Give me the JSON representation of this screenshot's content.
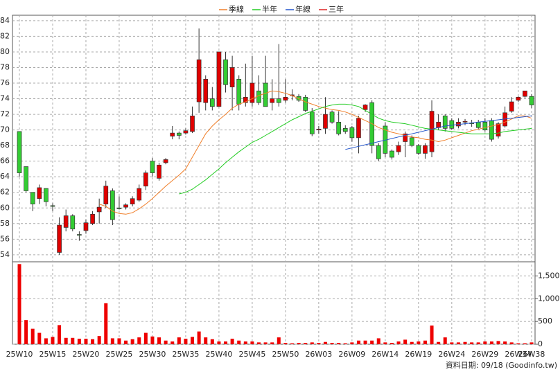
{
  "chart_data": {
    "type": "candlestick",
    "categories": [
      "25W10",
      null,
      null,
      null,
      null,
      "25W15",
      null,
      null,
      null,
      null,
      "25W20",
      null,
      null,
      null,
      null,
      "25W25",
      null,
      null,
      null,
      null,
      "25W30",
      null,
      null,
      null,
      null,
      "25W35",
      null,
      null,
      null,
      null,
      "25W40",
      null,
      null,
      null,
      null,
      "25W45",
      null,
      null,
      null,
      null,
      "25W50",
      null,
      null,
      null,
      null,
      "26W03",
      null,
      null,
      null,
      null,
      "26W09",
      null,
      null,
      null,
      null,
      "26W14",
      null,
      null,
      null,
      null,
      "26W19",
      null,
      null,
      null,
      null,
      "26W24",
      null,
      null,
      null,
      null,
      "26W29",
      null,
      null,
      null,
      null,
      "26W34",
      null,
      "26W38"
    ],
    "open": [
      69.8,
      65.3,
      62,
      61.2,
      62.5,
      60.3,
      54.3,
      57.5,
      59,
      56.6,
      57.1,
      58,
      59.5,
      60.5,
      62.2,
      60,
      60.1,
      60.5,
      61,
      62.8,
      66,
      63.8,
      65.8,
      69.2,
      69.6,
      69.6,
      69.8,
      73.6,
      73.5,
      74,
      73,
      79,
      75.5,
      76.5,
      73.5,
      73.5,
      75,
      76,
      73.5,
      74,
      73.8,
      74.4,
      74.3,
      74.2,
      72.3,
      70,
      70.2,
      72.3,
      71,
      70.2,
      70.3,
      69,
      72.6,
      73.5,
      68,
      70.5,
      67.3,
      67.2,
      68.5,
      69,
      68,
      67,
      67.2,
      70.3,
      71.8,
      71.2,
      70.5,
      71,
      70.9,
      71,
      71,
      71.2,
      69.2,
      70.5,
      72.4,
      73.8,
      74.3,
      74.3
    ],
    "high": [
      69.8,
      65.3,
      62,
      63,
      62.5,
      60.6,
      58.8,
      59.8,
      59.2,
      57,
      58.5,
      59.6,
      61.2,
      63.5,
      62.5,
      61.5,
      60.6,
      61.5,
      63,
      64.8,
      66.4,
      65.8,
      66.4,
      70.5,
      69.8,
      70.2,
      73,
      83,
      77,
      75.5,
      80,
      80,
      79.5,
      77,
      78.5,
      79.5,
      77,
      79.5,
      76.5,
      81,
      76.5,
      75.2,
      74.6,
      74.5,
      72.8,
      70.5,
      74.2,
      72.5,
      72.4,
      70.6,
      70.5,
      71.8,
      73.3,
      73.8,
      68.3,
      71,
      67.5,
      68.5,
      69.8,
      69.3,
      68.2,
      68.3,
      73.8,
      72,
      72,
      71.5,
      71.5,
      71.4,
      71.3,
      71.3,
      71.5,
      71.5,
      71,
      73,
      74.2,
      74.3,
      75,
      74.6
    ],
    "low": [
      64,
      62,
      59.6,
      60.5,
      60.2,
      59.6,
      54,
      57,
      57,
      55.8,
      56.7,
      57.8,
      58,
      60,
      57.8,
      59.8,
      59.8,
      60.2,
      60.8,
      62.3,
      64,
      63.5,
      65.6,
      68.8,
      68.8,
      69.4,
      69.6,
      72.2,
      72.5,
      72.5,
      73,
      74.8,
      72.5,
      72.5,
      73,
      73,
      73.2,
      73,
      72.5,
      73,
      73.5,
      73.8,
      73.6,
      72.3,
      69.2,
      69.5,
      69.5,
      70.8,
      69.3,
      69.5,
      68.5,
      67,
      72.3,
      67,
      66,
      66.5,
      66.2,
      66.8,
      66.5,
      67.8,
      66.8,
      66.3,
      66.5,
      70,
      69.8,
      70,
      70.2,
      70.6,
      70.4,
      70.1,
      69.8,
      68.5,
      68.9,
      70.3,
      72.2,
      73.6,
      74.1,
      72.8
    ],
    "close": [
      64.5,
      62.2,
      60.5,
      62.6,
      60.8,
      60.2,
      57.8,
      59,
      57.3,
      56.5,
      58.1,
      59.2,
      60.1,
      62.8,
      58.5,
      59.9,
      60.4,
      61.2,
      62.5,
      64.5,
      64.5,
      65.5,
      66.2,
      69.6,
      69.3,
      69.9,
      71.8,
      79,
      76.5,
      73,
      80,
      75.8,
      78,
      73.3,
      74.2,
      76,
      73.5,
      73,
      74,
      73.5,
      74.2,
      74.5,
      73.8,
      72.5,
      69.5,
      70.1,
      72,
      71,
      69.5,
      69.8,
      69,
      71.5,
      73.2,
      68,
      66.3,
      67,
      66.5,
      68,
      69.5,
      68,
      67,
      68,
      72.4,
      71,
      70.2,
      70.2,
      71,
      71.1,
      70.8,
      70.3,
      70,
      68.8,
      70.8,
      72.2,
      73.6,
      74.2,
      75,
      73.2
    ],
    "up_color": "#e00000",
    "down_color": "#33cc33",
    "ylim": [
      53.1,
      84.7
    ],
    "yticks": [
      54,
      56,
      58,
      60,
      62,
      64,
      66,
      68,
      70,
      72,
      74,
      76,
      78,
      80,
      82,
      84
    ],
    "grid": true,
    "legend": "top",
    "series": [
      {
        "name": "季線",
        "color": "#f07f2a",
        "values": [
          null,
          null,
          null,
          null,
          null,
          null,
          null,
          null,
          null,
          null,
          null,
          null,
          60.5,
          60.2,
          59.6,
          59.3,
          59.2,
          59.4,
          59.9,
          60.5,
          61.2,
          62,
          62.8,
          63.5,
          64.2,
          65,
          66.5,
          68,
          69.5,
          70.5,
          71.3,
          72,
          72.8,
          73.3,
          73.6,
          74,
          74.4,
          74.7,
          75,
          74.9,
          74.7,
          74.4,
          74,
          73.6,
          73.3,
          73,
          72.8,
          72.6,
          72.5,
          72.3,
          72,
          71.6,
          71.2,
          70.8,
          70.3,
          70,
          69.7,
          69.5,
          69.3,
          69.1,
          69,
          68.8,
          68.7,
          68.5,
          68.7,
          69,
          69.3,
          69.6,
          69.9,
          70.1,
          70.3,
          70.5,
          70.7,
          71,
          71.4,
          71.8,
          71.8,
          71.5
        ]
      },
      {
        "name": "半年",
        "color": "#22cc22",
        "values": [
          null,
          null,
          null,
          null,
          null,
          null,
          null,
          null,
          null,
          null,
          null,
          null,
          null,
          null,
          null,
          null,
          null,
          null,
          null,
          null,
          null,
          null,
          null,
          null,
          61.8,
          62,
          62.4,
          63,
          63.6,
          64.3,
          65,
          65.8,
          66.5,
          67.2,
          67.8,
          68.4,
          68.8,
          69.3,
          69.8,
          70.3,
          70.8,
          71.3,
          71.7,
          72.1,
          72.4,
          72.7,
          73,
          73.2,
          73.3,
          73.3,
          73.2,
          73,
          72.5,
          72,
          71.5,
          71.2,
          71,
          70.9,
          70.8,
          70.6,
          70.4,
          70.2,
          70.1,
          70,
          69.9,
          69.8,
          69.7,
          69.6,
          69.5,
          69.5,
          69.5,
          69.5,
          69.6,
          69.8,
          69.9,
          70,
          70.1,
          70.2
        ]
      },
      {
        "name": "年線",
        "color": "#2255cc",
        "values": [
          null,
          null,
          null,
          null,
          null,
          null,
          null,
          null,
          null,
          null,
          null,
          null,
          null,
          null,
          null,
          null,
          null,
          null,
          null,
          null,
          null,
          null,
          null,
          null,
          null,
          null,
          null,
          null,
          null,
          null,
          null,
          null,
          null,
          null,
          null,
          null,
          null,
          null,
          null,
          null,
          null,
          null,
          null,
          null,
          null,
          null,
          null,
          null,
          null,
          67.5,
          67.7,
          67.9,
          68.1,
          68.3,
          68.5,
          68.7,
          68.9,
          69.1,
          69.3,
          69.5,
          69.7,
          69.9,
          70.1,
          70.3,
          70.5,
          70.6,
          70.7,
          70.8,
          70.9,
          71,
          71.1,
          71.2,
          71.3,
          71.4,
          71.5,
          71.6,
          71.7,
          71.8
        ]
      },
      {
        "name": "三年",
        "color": "#dd2222",
        "values": [
          null,
          null,
          null,
          null,
          null,
          null,
          null,
          null,
          null,
          null,
          null,
          null,
          null,
          null,
          null,
          null,
          null,
          null,
          null,
          null,
          null,
          null,
          null,
          null,
          null,
          null,
          null,
          null,
          null,
          null,
          null,
          null,
          null,
          null,
          null,
          null,
          null,
          null,
          null,
          null,
          null,
          null,
          null,
          null,
          null,
          null,
          null,
          null,
          null,
          null,
          null,
          null,
          null,
          null,
          null,
          null,
          null,
          null,
          null,
          null,
          null,
          null,
          null,
          null,
          null,
          null,
          null,
          null,
          null,
          null,
          null,
          null,
          null,
          null,
          null,
          null,
          null,
          null
        ]
      }
    ],
    "volume": {
      "color": "#ee0000",
      "values": [
        1760,
        530,
        340,
        250,
        130,
        160,
        420,
        140,
        140,
        120,
        120,
        110,
        180,
        900,
        130,
        130,
        80,
        110,
        150,
        250,
        170,
        150,
        80,
        60,
        150,
        120,
        160,
        280,
        150,
        110,
        60,
        60,
        120,
        80,
        60,
        60,
        40,
        40,
        40,
        150,
        30,
        20,
        30,
        30,
        40,
        30,
        50,
        30,
        30,
        20,
        40,
        80,
        80,
        80,
        130,
        40,
        30,
        60,
        100,
        50,
        60,
        80,
        410,
        50,
        150,
        40,
        40,
        50,
        40,
        40,
        60,
        60,
        70,
        60,
        40,
        20,
        20,
        40
      ],
      "ylim": [
        0,
        1780
      ],
      "yticks": [
        0,
        {
          "value": 500,
          "label": "500"
        },
        {
          "value": 1000,
          "label": "1,000"
        },
        {
          "value": 1500,
          "label": "1,500"
        }
      ]
    },
    "source": "資料日期: 09/18   (Goodinfo.tw)"
  }
}
